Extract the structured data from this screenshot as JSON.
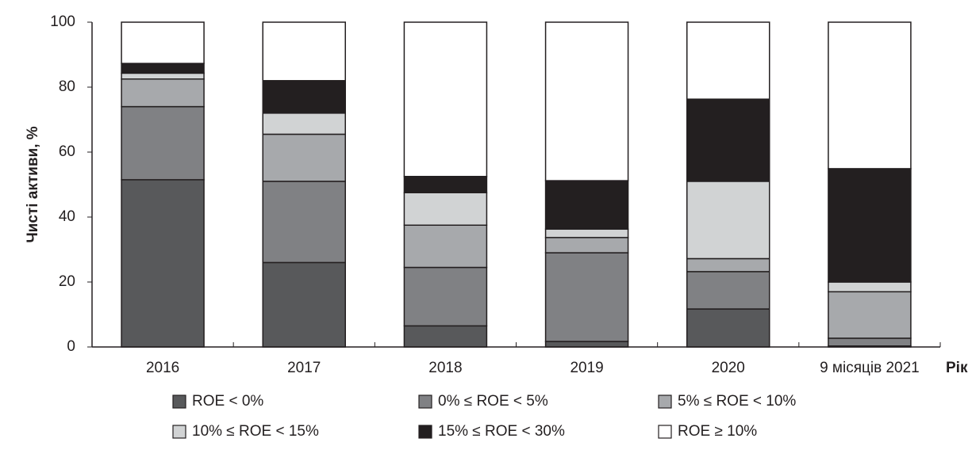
{
  "chart_data": {
    "type": "stacked_bar",
    "y_label": "Чисті активи, %",
    "x_label": "Рік",
    "categories": [
      "2016",
      "2017",
      "2018",
      "2019",
      "2020",
      "9 місяців 2021"
    ],
    "series": [
      {
        "name": "ROE < 0%",
        "color": "#58595b",
        "values": [
          51.5,
          26,
          6.5,
          1.7,
          11.7,
          0.3
        ]
      },
      {
        "name": "0% ≤ ROE < 5%",
        "color": "#808184",
        "values": [
          22.5,
          25,
          18,
          27.3,
          11.5,
          2.4
        ]
      },
      {
        "name": "5% ≤ ROE < 10%",
        "color": "#a7a9ac",
        "values": [
          8.5,
          14.5,
          13,
          4.7,
          4,
          14.3
        ]
      },
      {
        "name": "10% ≤ ROE < 15%",
        "color": "#d1d3d4",
        "values": [
          1.8,
          6.5,
          10,
          2.6,
          23.8,
          3
        ]
      },
      {
        "name": "15% ≤ ROE < 30%",
        "color": "#231f20",
        "values": [
          3,
          10,
          5,
          14.9,
          25.3,
          34.9
        ]
      },
      {
        "name": "ROE ≥ 10%",
        "color": "#ffffff",
        "values": [
          12.7,
          18,
          47.5,
          48.8,
          23.7,
          45.1
        ]
      }
    ],
    "ylim": [
      0,
      100
    ],
    "yticks": [
      0,
      20,
      40,
      60,
      80,
      100
    ]
  }
}
